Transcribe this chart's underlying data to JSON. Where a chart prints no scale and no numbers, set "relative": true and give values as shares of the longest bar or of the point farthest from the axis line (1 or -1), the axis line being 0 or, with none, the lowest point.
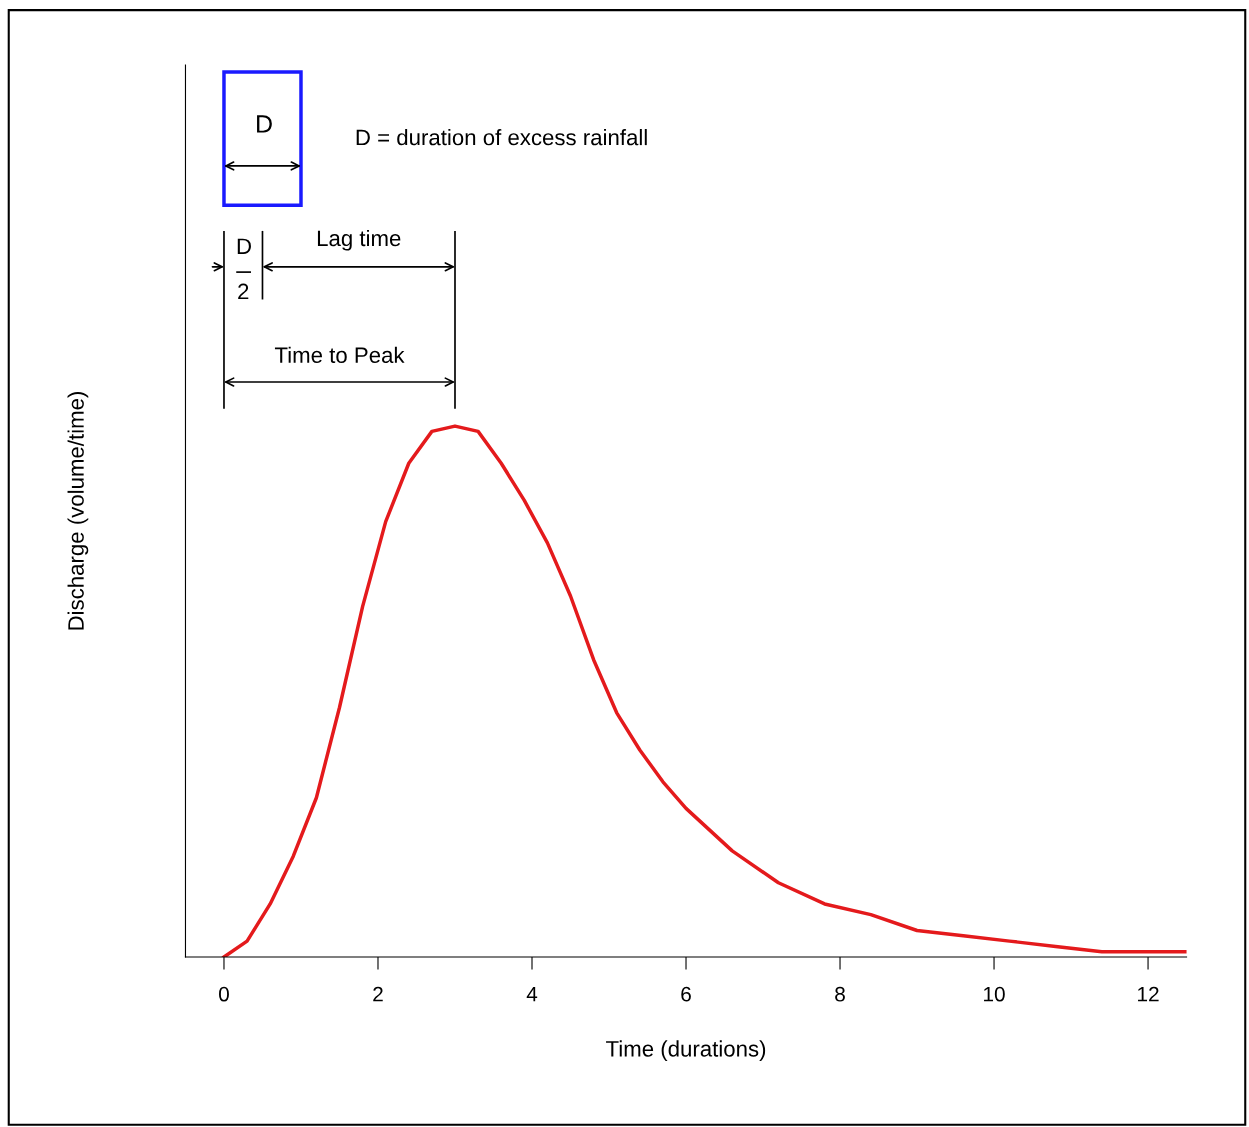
{
  "chart_data": {
    "type": "line",
    "relative": true,
    "color": "#e41a1c",
    "xlabel": "Time (durations)",
    "ylabel": "Discharge (volume/time)",
    "xlim": [
      -0.5,
      12.5
    ],
    "xticks": [
      0,
      2,
      4,
      6,
      8,
      10,
      12
    ],
    "x": [
      0,
      0.3,
      0.6,
      0.9,
      1.2,
      1.5,
      1.8,
      2.1,
      2.4,
      2.7,
      3,
      3.3,
      3.6,
      3.9,
      4.2,
      4.5,
      4.8,
      5.1,
      5.4,
      5.7,
      6,
      6.6,
      7.2,
      7.8,
      8.4,
      9,
      9.6,
      10.2,
      10.8,
      11.4,
      12,
      12.5
    ],
    "values": [
      0,
      0.03,
      0.1,
      0.19,
      0.3,
      0.47,
      0.66,
      0.82,
      0.93,
      0.99,
      1,
      0.99,
      0.93,
      0.86,
      0.78,
      0.68,
      0.56,
      0.46,
      0.39,
      0.33,
      0.28,
      0.2,
      0.14,
      0.1,
      0.08,
      0.05,
      0.04,
      0.03,
      0.02,
      0.01,
      0.01,
      0.01
    ],
    "annotations": [
      "D",
      "D = duration of excess rainfall",
      "D",
      "2",
      "Lag time",
      "Time to Peak"
    ]
  }
}
